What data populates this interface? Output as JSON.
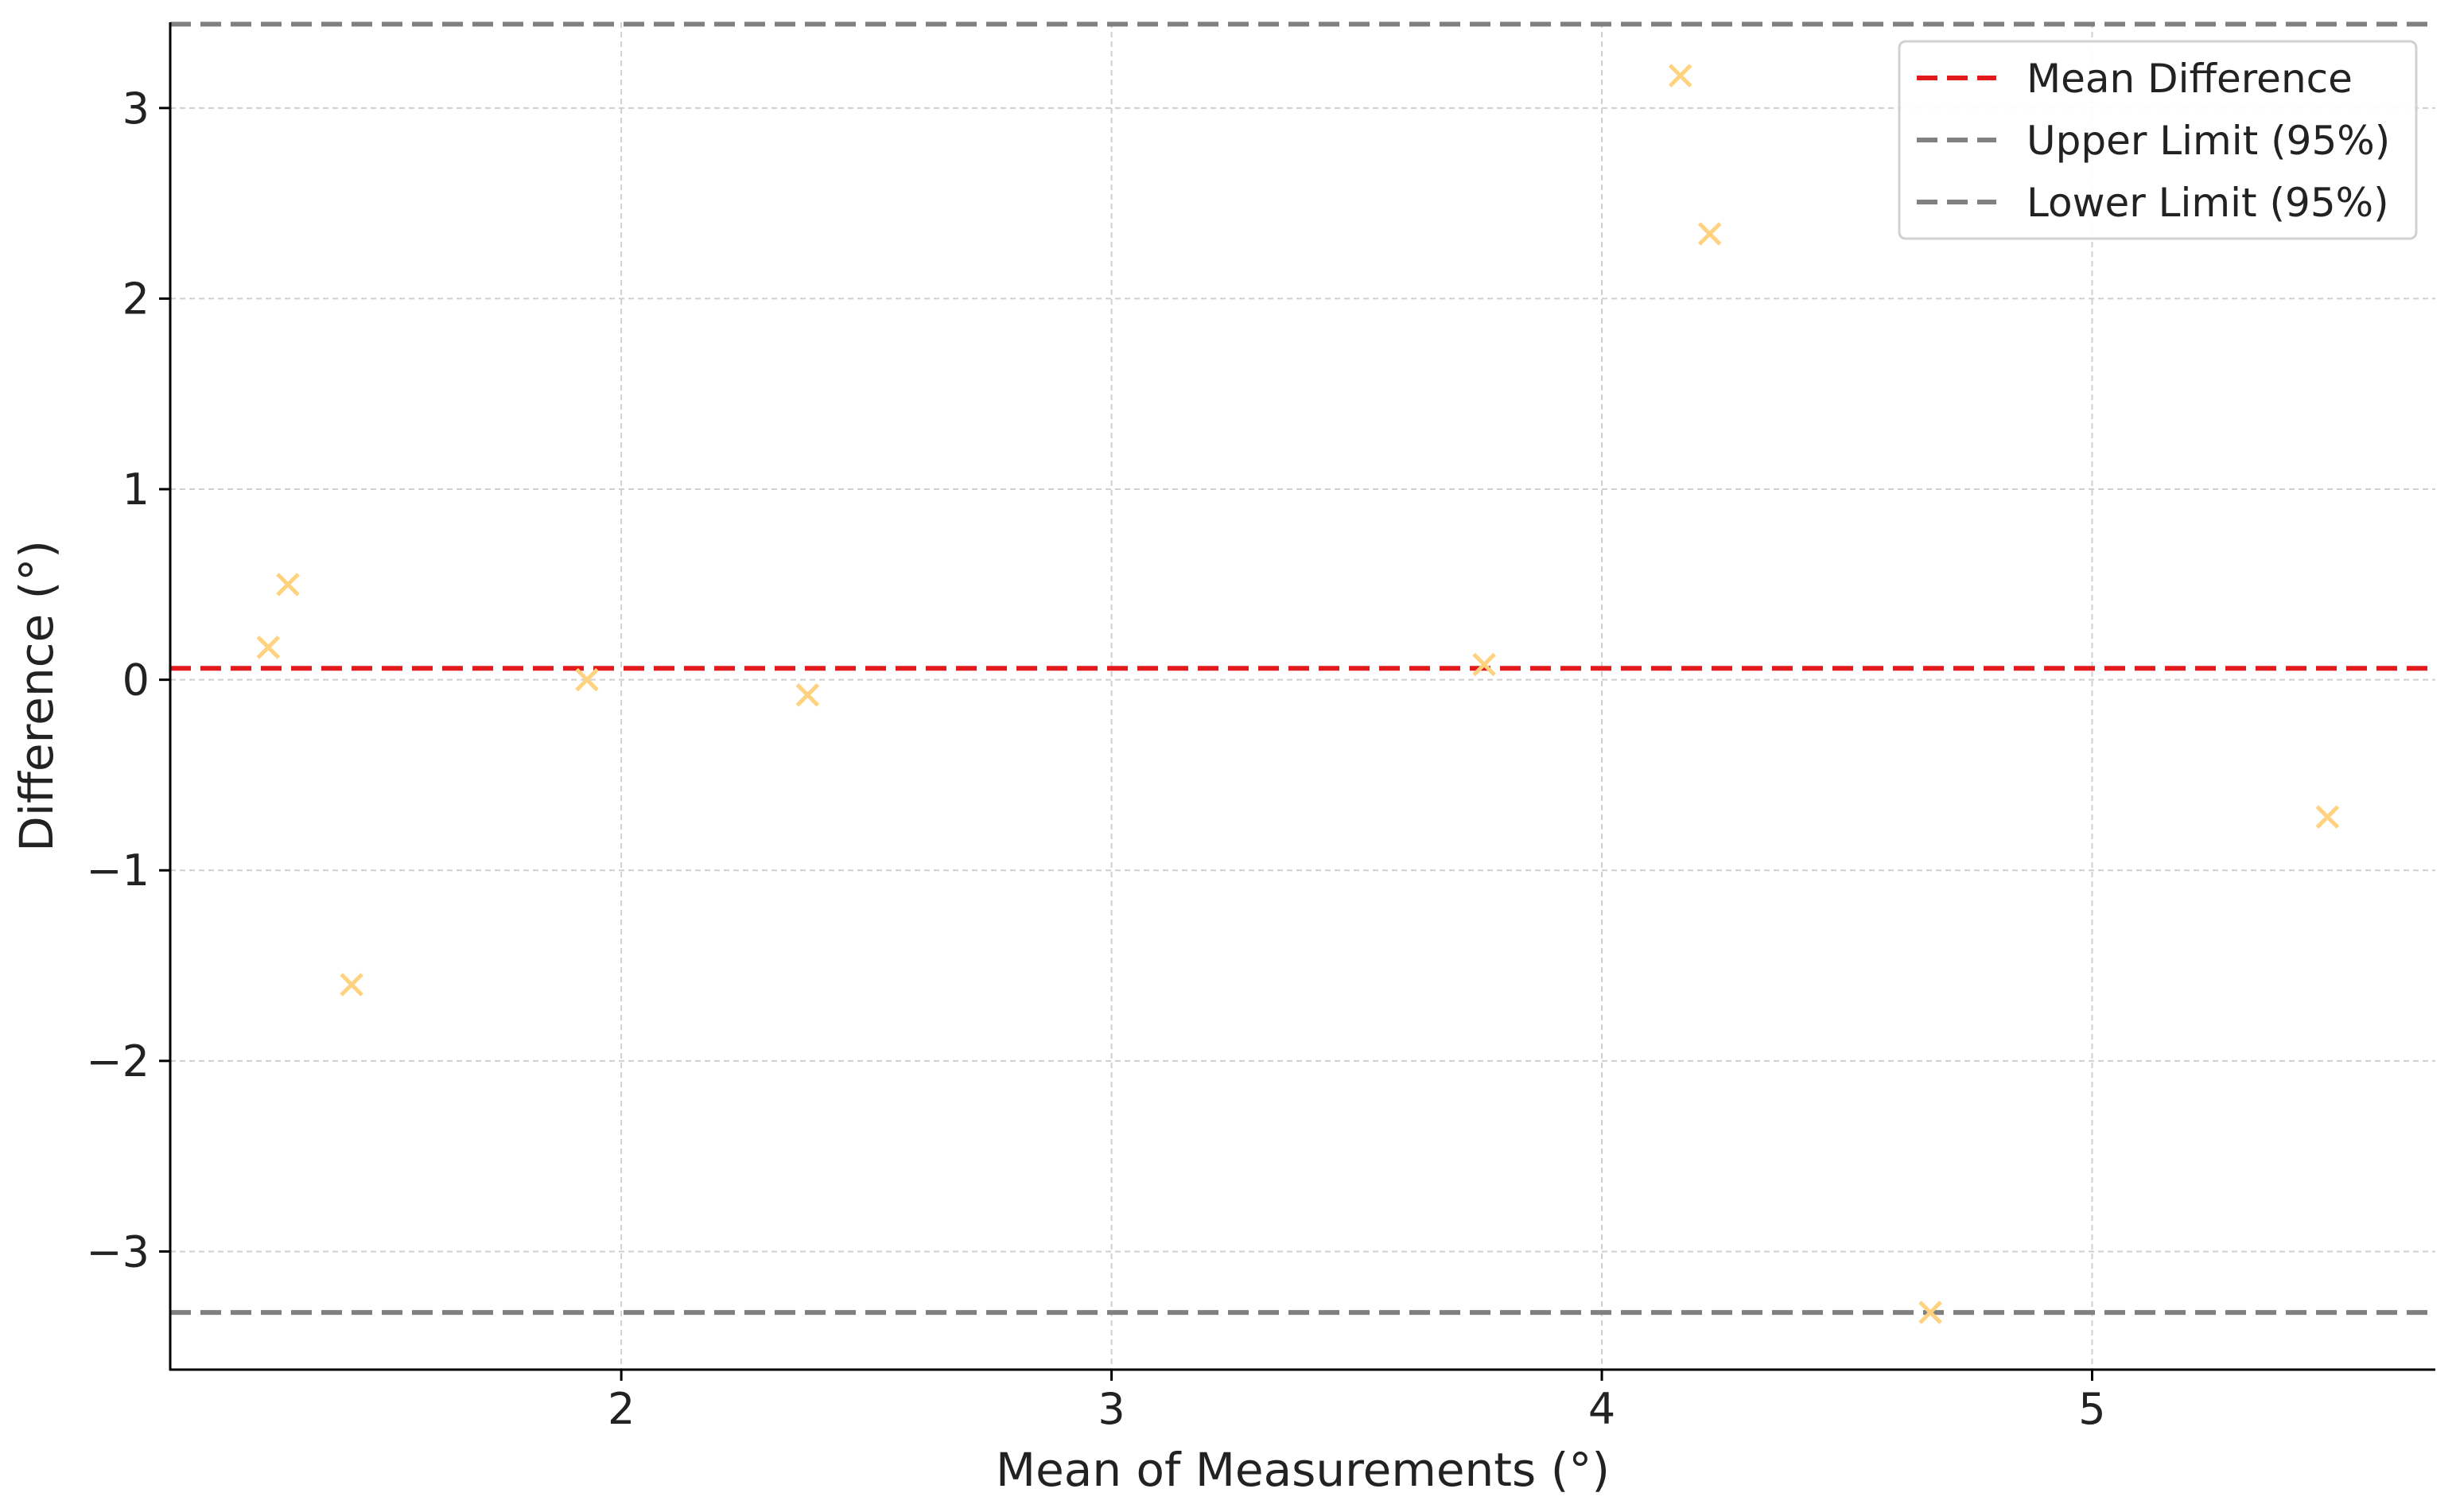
{
  "chart_data": {
    "type": "scatter",
    "title": "",
    "xlabel": "Mean of Measurements (°)",
    "ylabel": "Difference (°)",
    "xlim": [
      1.08,
      5.7
    ],
    "ylim": [
      -3.62,
      3.45
    ],
    "xticks": [
      2,
      3,
      4,
      5
    ],
    "yticks": [
      -3,
      -2,
      -1,
      0,
      1,
      2,
      3
    ],
    "tick_labels_x": [
      "2",
      "3",
      "4",
      "5"
    ],
    "tick_labels_y": [
      "−3",
      "−2",
      "−1",
      "0",
      "1",
      "2",
      "3"
    ],
    "grid": true,
    "legend_position": "top-right",
    "points": {
      "marker": "x",
      "color": "#FFD27F",
      "x": [
        1.28,
        1.32,
        1.45,
        1.93,
        2.38,
        3.76,
        4.16,
        4.22,
        4.67,
        5.48
      ],
      "y": [
        0.17,
        0.5,
        -1.6,
        0.0,
        -0.08,
        0.08,
        3.17,
        2.34,
        -3.32,
        -0.72
      ]
    },
    "lines": [
      {
        "name": "Mean Difference",
        "y": 0.06,
        "color": "#E31A1C",
        "style": "dashed"
      },
      {
        "name": "Upper Limit (95%)",
        "y": 3.44,
        "color": "#808080",
        "style": "dashed"
      },
      {
        "name": "Lower Limit (95%)",
        "y": -3.32,
        "color": "#808080",
        "style": "dashed"
      }
    ],
    "legend": [
      "Mean Difference",
      "Upper Limit (95%)",
      "Lower Limit (95%)"
    ]
  }
}
